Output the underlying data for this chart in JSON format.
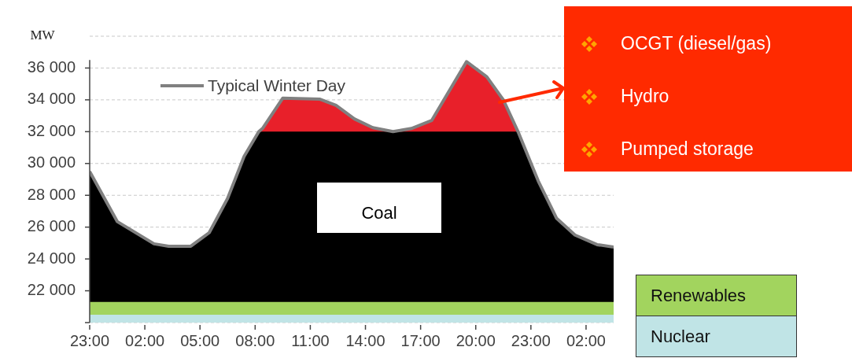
{
  "chart_data": {
    "type": "area",
    "ylabel": "MW",
    "legend": "top left",
    "grid": "y",
    "x": [
      "--01-01T23:00",
      "--01-02T00:30",
      "--01-02T02:30",
      "--01-02T03:18",
      "--01-02T04:30",
      "--01-02T05:30",
      "--01-02T06:30",
      "--01-02T07:24",
      "--01-02T08:12",
      "--01-02T08:24",
      "--01-02T09:30",
      "--01-02T11:30",
      "--01-02T12:24",
      "--01-02T13:24",
      "--01-02T14:24",
      "--01-02T15:30",
      "--01-02T16:30",
      "--01-02T17:36",
      "--01-02T19:30",
      "--01-02T20:36",
      "--01-02T21:30",
      "--01-02T22:18",
      "--01-02T23:24",
      "--01-03T00:24",
      "--01-03T01:24",
      "--01-03T02:36",
      "--01-03T03:30"
    ],
    "xlim": [
      "--01-01T23:00",
      "--01-03T03:30"
    ],
    "xticks": [
      {
        "value": "--01-01T23:00",
        "label": "23:00"
      },
      {
        "value": "--01-02T02:00",
        "label": "02:00"
      },
      {
        "value": "--01-02T05:00",
        "label": "05:00"
      },
      {
        "value": "--01-02T08:00",
        "label": "08:00"
      },
      {
        "value": "--01-02T11:00",
        "label": "11:00"
      },
      {
        "value": "--01-02T14:00",
        "label": "14:00"
      },
      {
        "value": "--01-02T17:00",
        "label": "17:00"
      },
      {
        "value": "--01-02T20:00",
        "label": "20:00"
      },
      {
        "value": "--01-02T23:00",
        "label": "23:00"
      },
      {
        "value": "--01-03T02:00",
        "label": "02:00"
      }
    ],
    "ylim": [
      20000,
      38000
    ],
    "yticks": [
      {
        "value": 20000,
        "label": null
      },
      {
        "value": 22000,
        "label": "22 000"
      },
      {
        "value": 24000,
        "label": "24 000"
      },
      {
        "value": 26000,
        "label": "26 000"
      },
      {
        "value": 28000,
        "label": "28 000"
      },
      {
        "value": 30000,
        "label": "30 000"
      },
      {
        "value": 32000,
        "label": "32 000"
      },
      {
        "value": 34000,
        "label": "34 000"
      },
      {
        "value": 36000,
        "label": "36 000"
      },
      {
        "value": 38000,
        "label": null
      }
    ],
    "series": [
      {
        "name": "Nuclear",
        "type": "area",
        "color": "#c0e4e6",
        "values": [
          20500,
          20500,
          20500,
          20500,
          20500,
          20500,
          20500,
          20500,
          20500,
          20500,
          20500,
          20500,
          20500,
          20500,
          20500,
          20500,
          20500,
          20500,
          20500,
          20500,
          20500,
          20500,
          20500,
          20500,
          20500,
          20500,
          20500
        ]
      },
      {
        "name": "Renewables",
        "type": "area",
        "color": "#a2d45e",
        "values": [
          21300,
          21300,
          21300,
          21300,
          21300,
          21300,
          21300,
          21300,
          21300,
          21300,
          21300,
          21300,
          21300,
          21300,
          21300,
          21300,
          21300,
          21300,
          21300,
          21300,
          21300,
          21300,
          21300,
          21300,
          21300,
          21300,
          21300
        ]
      },
      {
        "name": "Coal",
        "type": "area",
        "color": "#000000",
        "values": [
          29500,
          26350,
          24950,
          24800,
          24800,
          25650,
          27800,
          30450,
          32000,
          32000,
          32000,
          32000,
          32000,
          32000,
          32000,
          32000,
          32000,
          32000,
          32000,
          32000,
          32000,
          32000,
          28900,
          26550,
          25500,
          24900,
          24750
        ]
      },
      {
        "type": "area",
        "color": "#e8202a",
        "values": [
          null,
          null,
          null,
          null,
          null,
          null,
          null,
          null,
          32000,
          32200,
          34100,
          34050,
          33650,
          32800,
          32250,
          32000,
          32200,
          32700,
          36400,
          35450,
          34000,
          32000,
          null,
          null,
          null,
          null,
          null
        ]
      },
      {
        "name": "Typical Winter Day",
        "type": "line",
        "color": "#808080",
        "values": [
          29500,
          26350,
          24950,
          24800,
          24800,
          25650,
          27800,
          30450,
          32000,
          32200,
          34100,
          34050,
          33650,
          32800,
          32250,
          32000,
          32200,
          32700,
          36400,
          35450,
          34000,
          32000,
          28900,
          26550,
          25500,
          24900,
          24750
        ]
      }
    ],
    "annotations": [
      "OCGT (diesel/gas)",
      "Hydro",
      "Pumped storage"
    ]
  }
}
